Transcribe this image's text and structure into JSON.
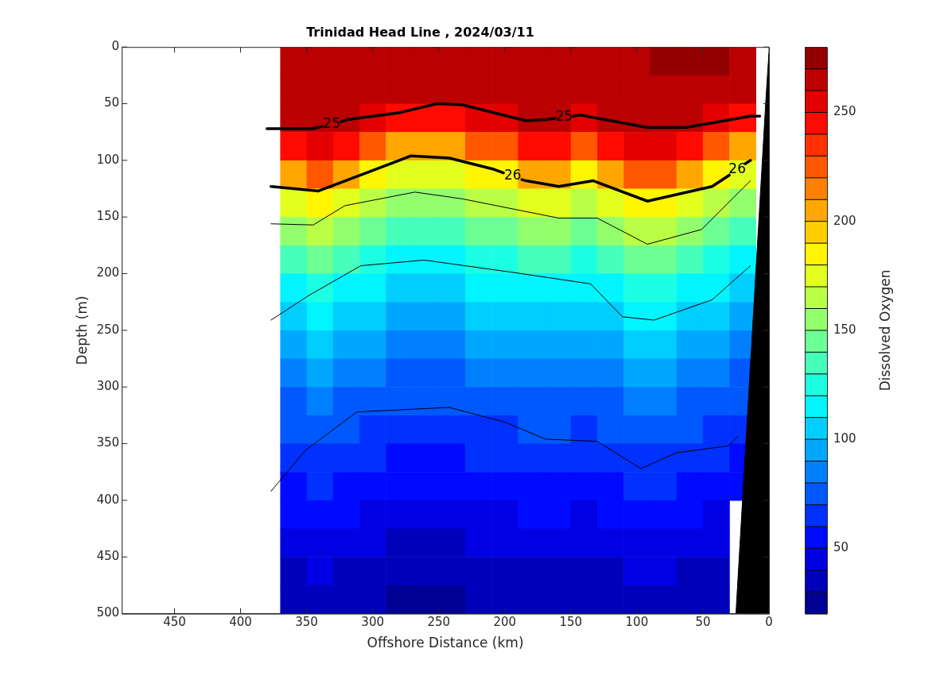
{
  "chart_data": {
    "type": "heatmap",
    "title": "Trinidad Head Line , 2024/03/11",
    "xlabel": "Offshore Distance (km)",
    "ylabel": "Depth (m)",
    "clabel": "Dissolved Oxygen",
    "xlim": [
      490,
      0
    ],
    "xticks": [
      450,
      400,
      350,
      300,
      250,
      200,
      150,
      100,
      50,
      0
    ],
    "ylim": [
      500,
      0
    ],
    "yticks": [
      0,
      50,
      100,
      150,
      200,
      250,
      300,
      350,
      400,
      450,
      500
    ],
    "clim": [
      20,
      280
    ],
    "cticks": [
      50,
      100,
      150,
      200,
      250
    ],
    "x": [
      360,
      340,
      320,
      300,
      280,
      260,
      240,
      220,
      200,
      180,
      160,
      140,
      120,
      100,
      80,
      60,
      40,
      20
    ],
    "y": [
      12.5,
      37.5,
      62.5,
      87.5,
      112.5,
      137.5,
      162.5,
      187.5,
      212.5,
      237.5,
      262.5,
      287.5,
      312.5,
      337.5,
      362.5,
      387.5,
      412.5,
      437.5,
      462.5,
      487.5
    ],
    "cells": [
      [
        265,
        265,
        265,
        265,
        265,
        265,
        265,
        265,
        265,
        265,
        265,
        265,
        265,
        265,
        270,
        275,
        272,
        265
      ],
      [
        265,
        265,
        265,
        262,
        260,
        260,
        260,
        262,
        262,
        265,
        265,
        262,
        265,
        265,
        265,
        265,
        262,
        260
      ],
      [
        260,
        262,
        260,
        255,
        245,
        245,
        245,
        255,
        255,
        260,
        260,
        255,
        260,
        262,
        262,
        260,
        255,
        245
      ],
      [
        245,
        255,
        245,
        225,
        205,
        205,
        205,
        225,
        225,
        245,
        245,
        225,
        245,
        255,
        255,
        245,
        225,
        205
      ],
      [
        205,
        225,
        205,
        185,
        170,
        170,
        170,
        185,
        185,
        205,
        205,
        185,
        205,
        225,
        225,
        205,
        185,
        170
      ],
      [
        170,
        185,
        170,
        160,
        150,
        150,
        150,
        160,
        160,
        170,
        170,
        160,
        170,
        185,
        185,
        170,
        160,
        150
      ],
      [
        150,
        160,
        150,
        140,
        130,
        130,
        130,
        140,
        140,
        150,
        150,
        140,
        150,
        160,
        160,
        150,
        140,
        130
      ],
      [
        130,
        140,
        130,
        122,
        115,
        115,
        115,
        122,
        122,
        130,
        130,
        122,
        130,
        140,
        140,
        130,
        122,
        115
      ],
      [
        115,
        122,
        115,
        110,
        105,
        105,
        105,
        110,
        110,
        115,
        115,
        110,
        115,
        122,
        122,
        115,
        110,
        105
      ],
      [
        105,
        110,
        105,
        100,
        95,
        95,
        95,
        100,
        100,
        105,
        105,
        100,
        105,
        110,
        110,
        105,
        100,
        95
      ],
      [
        95,
        100,
        95,
        90,
        85,
        85,
        85,
        90,
        90,
        95,
        95,
        90,
        95,
        100,
        100,
        95,
        90,
        85
      ],
      [
        85,
        90,
        85,
        80,
        75,
        75,
        75,
        80,
        80,
        85,
        85,
        80,
        85,
        90,
        90,
        85,
        80,
        75
      ],
      [
        75,
        80,
        75,
        72,
        70,
        70,
        70,
        72,
        72,
        75,
        75,
        72,
        75,
        80,
        80,
        75,
        72,
        70
      ],
      [
        70,
        72,
        70,
        67,
        64,
        64,
        64,
        67,
        67,
        70,
        70,
        67,
        70,
        72,
        72,
        70,
        67,
        64
      ],
      [
        64,
        67,
        64,
        61,
        58,
        58,
        58,
        61,
        61,
        64,
        64,
        61,
        64,
        67,
        67,
        64,
        61,
        58
      ],
      [
        58,
        61,
        58,
        55,
        52,
        52,
        52,
        55,
        55,
        58,
        58,
        55,
        58,
        61,
        61,
        58,
        55,
        52
      ],
      [
        52,
        55,
        52,
        48,
        45,
        45,
        45,
        48,
        48,
        52,
        52,
        48,
        52,
        55,
        55,
        52,
        48,
        null
      ],
      [
        45,
        48,
        45,
        42,
        38,
        38,
        38,
        42,
        42,
        45,
        45,
        42,
        45,
        48,
        48,
        45,
        42,
        null
      ],
      [
        38,
        42,
        38,
        35,
        33,
        33,
        33,
        35,
        35,
        38,
        38,
        35,
        38,
        42,
        42,
        38,
        35,
        null
      ],
      [
        33,
        35,
        33,
        30,
        28,
        28,
        28,
        30,
        30,
        33,
        33,
        30,
        33,
        35,
        35,
        33,
        30,
        null
      ]
    ],
    "series": [
      {
        "type": "area",
        "color": "#000000",
        "x": [
          0,
          0,
          2,
          12,
          25
        ],
        "values": [
          500,
          5,
          40,
          240,
          500
        ]
      },
      {
        "type": "line",
        "color": "#000000",
        "x": [
          380,
          345,
          338,
          331,
          324,
          319,
          280,
          251,
          232,
          184,
          169,
          162,
          155,
          148,
          143,
          92,
          63,
          14,
          7
        ],
        "values": [
          72,
          72,
          70,
          null,
          66,
          64,
          58,
          50,
          51,
          65,
          64,
          63,
          null,
          61,
          60,
          71,
          71,
          61,
          61
        ]
      },
      {
        "type": "line",
        "color": "#000000",
        "x": [
          377,
          341,
          300,
          271,
          242,
          208,
          201,
          194,
          187,
          184,
          159,
          133,
          92,
          43,
          30,
          24,
          18,
          14
        ],
        "values": [
          123,
          127,
          109,
          96,
          98,
          108,
          111,
          null,
          117,
          118,
          123,
          118,
          136,
          123,
          113,
          null,
          103,
          100
        ]
      },
      {
        "type": "line",
        "color": "#000000",
        "x": [
          377,
          345,
          321,
          268,
          232,
          159,
          130,
          92,
          51,
          14
        ],
        "values": [
          156,
          157,
          140,
          128,
          134,
          151,
          151,
          174,
          161,
          118
        ]
      },
      {
        "type": "line",
        "color": "#000000",
        "x": [
          377,
          348,
          309,
          261,
          193,
          135,
          111,
          87,
          43,
          14
        ],
        "values": [
          241,
          219,
          193,
          188,
          199,
          209,
          238,
          241,
          223,
          193
        ]
      },
      {
        "type": "line",
        "color": "#000000",
        "x": [
          377,
          351,
          312,
          242,
          200,
          169,
          130,
          97,
          70,
          31,
          23
        ],
        "values": [
          392,
          356,
          322,
          318,
          331,
          346,
          348,
          372,
          358,
          352,
          343
        ]
      }
    ],
    "annotations": [
      "25",
      "25",
      "26",
      "26"
    ]
  }
}
